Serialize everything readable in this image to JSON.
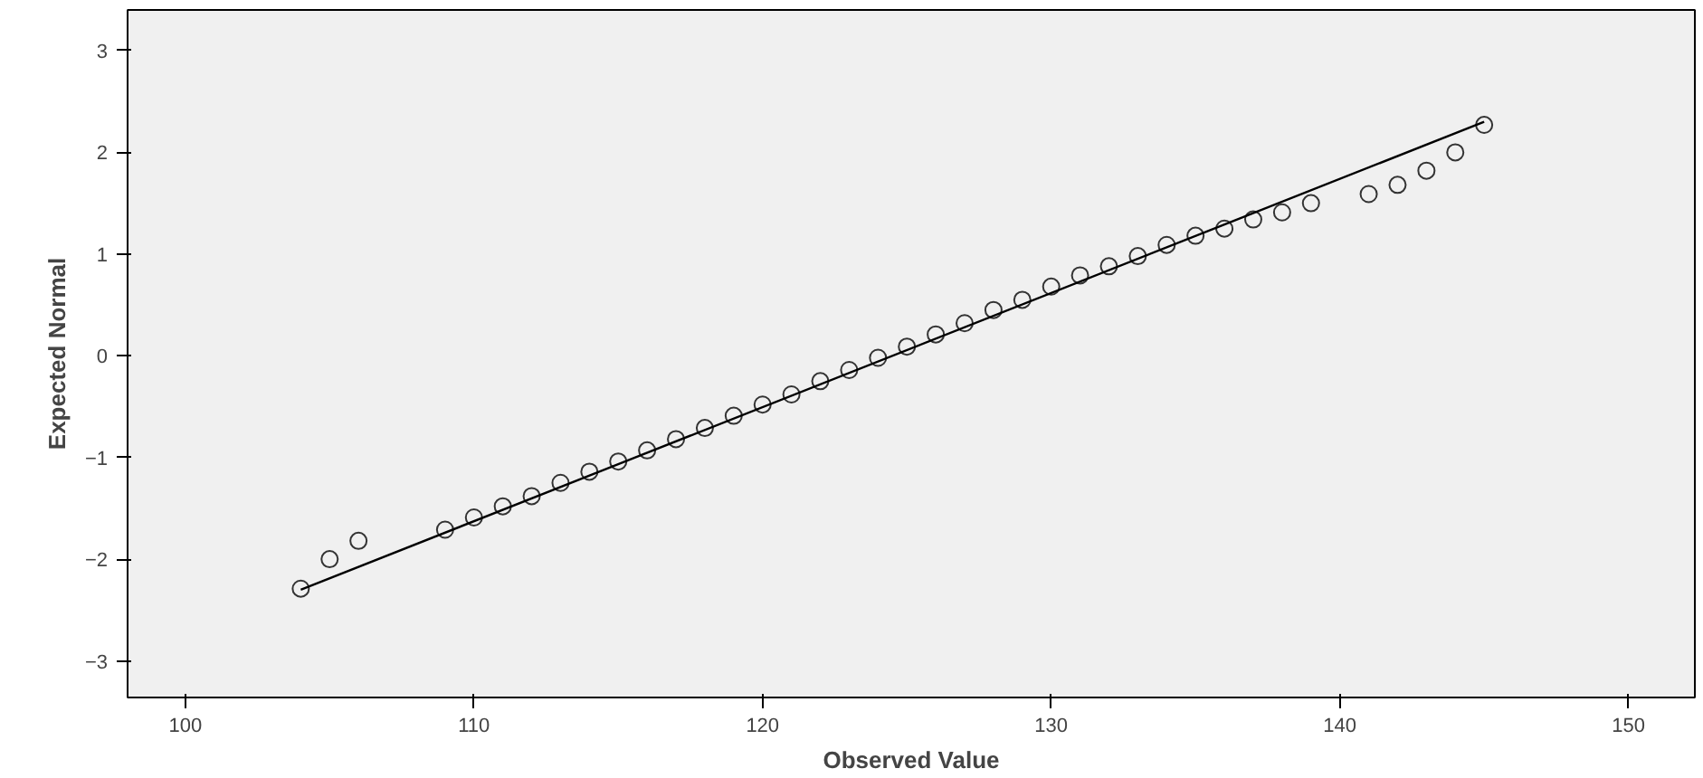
{
  "chart_data": {
    "type": "scatter",
    "xlabel": "Observed Value",
    "ylabel": "Expected Normal",
    "xlim": [
      98,
      152.3
    ],
    "ylim": [
      -3.36,
      3.4
    ],
    "xticks": [
      100,
      110,
      120,
      130,
      140,
      150
    ],
    "yticks": [
      -3,
      -2,
      -1,
      0,
      1,
      2,
      3
    ],
    "grid": false,
    "series": [
      {
        "marker": "circle",
        "color": "#333333",
        "x": [
          104,
          105,
          106,
          109,
          110,
          111,
          112,
          113,
          114,
          115,
          116,
          117,
          118,
          119,
          120,
          121,
          122,
          123,
          124,
          125,
          126,
          127,
          128,
          129,
          130,
          131,
          132,
          133,
          134,
          135,
          136,
          137,
          138,
          139,
          141,
          142,
          143,
          144,
          145
        ],
        "values": [
          -2.29,
          -2.0,
          -1.82,
          -1.71,
          -1.59,
          -1.48,
          -1.38,
          -1.25,
          -1.14,
          -1.04,
          -0.93,
          -0.82,
          -0.71,
          -0.59,
          -0.48,
          -0.38,
          -0.25,
          -0.14,
          -0.02,
          0.09,
          0.21,
          0.32,
          0.45,
          0.55,
          0.68,
          0.79,
          0.88,
          0.98,
          1.09,
          1.18,
          1.25,
          1.34,
          1.41,
          1.5,
          1.59,
          1.68,
          1.82,
          2.0,
          2.27
        ]
      },
      {
        "type": "line",
        "marker": "none",
        "color": "#000000",
        "x": [
          104,
          145
        ],
        "values": [
          -2.3,
          2.3
        ]
      }
    ]
  }
}
